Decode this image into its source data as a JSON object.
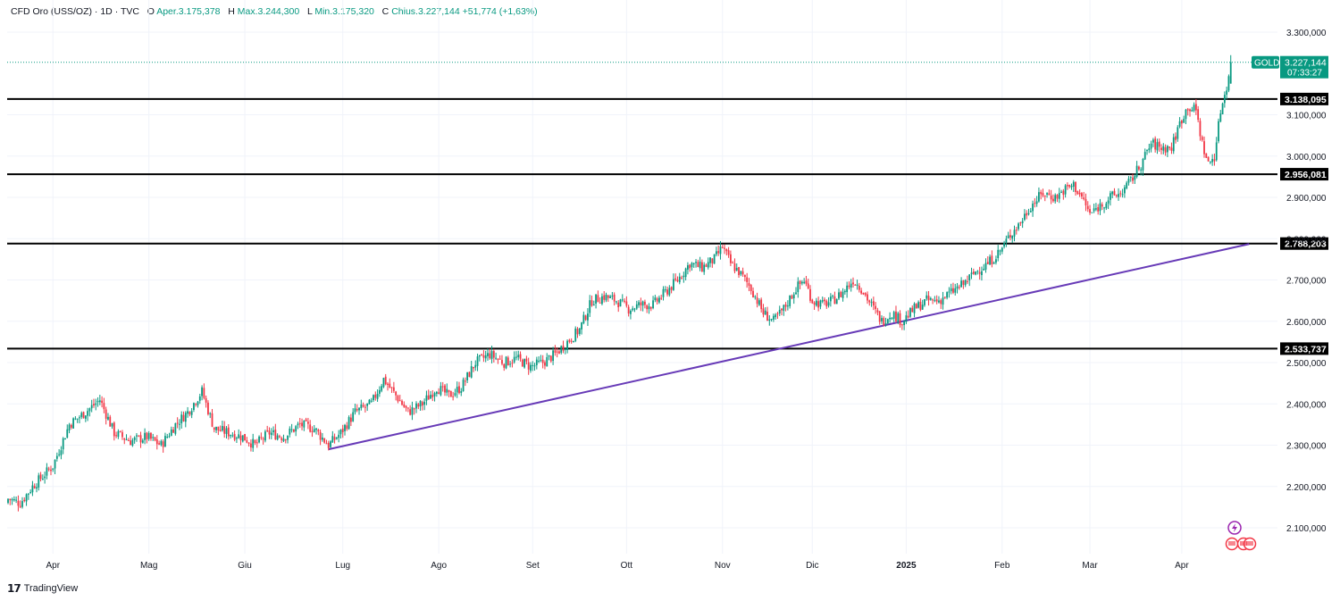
{
  "header": {
    "symbol": "CFD Oro (USS/OZ)",
    "interval": "1D",
    "source": "TVC",
    "open_label": "O",
    "open": "Aper.3.175,378",
    "high_label": "H",
    "high": "Max.3.244,300",
    "low_label": "L",
    "low": "Min.3.175,320",
    "close_label": "C",
    "close": "Chius.3.227,144",
    "change": "+51,774 (+1,63%)"
  },
  "last_price": {
    "ticker": "GOLD",
    "value": "3.227,144",
    "countdown": "07:33:27"
  },
  "footer": {
    "brand": "TradingView"
  },
  "colors": {
    "up": "#089981",
    "down": "#f23645",
    "trendline": "#673ab7",
    "level": "#000000",
    "grid": "#f0f3fa"
  },
  "chart_data": {
    "type": "candlestick",
    "y_axis": {
      "ylim": [
        2020,
        3350
      ],
      "ticks": [
        2100,
        2200,
        2300,
        2400,
        2500,
        2600,
        2700,
        2800,
        2900,
        3000,
        3100,
        3300
      ],
      "tick_labels": [
        "2.100,000",
        "2.200,000",
        "2.300,000",
        "2.400,000",
        "2.500,000",
        "2.600,000",
        "2.700,000",
        "2.800,000",
        "2.900,000",
        "3.000,000",
        "3.100,000",
        "3.300,000"
      ]
    },
    "x_axis": {
      "labels": [
        "Apr",
        "Mag",
        "Giu",
        "Lug",
        "Ago",
        "Set",
        "Ott",
        "Nov",
        "Dic",
        "2025",
        "Feb",
        "Mar",
        "Apr"
      ],
      "bold": [
        false,
        false,
        false,
        false,
        false,
        false,
        false,
        false,
        false,
        true,
        false,
        false,
        false
      ],
      "label_bar_index": [
        22,
        69,
        116,
        164,
        211,
        257,
        303,
        350,
        394,
        440,
        487,
        530,
        575
      ]
    },
    "horizontal_levels": [
      {
        "value": 3138.095,
        "label": "3.138,095"
      },
      {
        "value": 2956.081,
        "label": "2.956,081"
      },
      {
        "value": 2788.203,
        "label": "2.788,203"
      },
      {
        "value": 2533.737,
        "label": "2.533,737"
      }
    ],
    "trendline": {
      "from_bar": 157,
      "from_value": 2290,
      "to_bar": 608,
      "to_value": 2787
    },
    "anchors": [
      [
        0,
        2170
      ],
      [
        6,
        2160
      ],
      [
        12,
        2200
      ],
      [
        22,
        2250
      ],
      [
        30,
        2350
      ],
      [
        38,
        2380
      ],
      [
        45,
        2410
      ],
      [
        52,
        2330
      ],
      [
        60,
        2310
      ],
      [
        68,
        2320
      ],
      [
        75,
        2300
      ],
      [
        82,
        2350
      ],
      [
        88,
        2380
      ],
      [
        95,
        2430
      ],
      [
        101,
        2340
      ],
      [
        108,
        2330
      ],
      [
        115,
        2320
      ],
      [
        121,
        2300
      ],
      [
        128,
        2330
      ],
      [
        135,
        2320
      ],
      [
        143,
        2350
      ],
      [
        150,
        2340
      ],
      [
        157,
        2300
      ],
      [
        163,
        2330
      ],
      [
        170,
        2380
      ],
      [
        178,
        2400
      ],
      [
        184,
        2460
      ],
      [
        190,
        2420
      ],
      [
        196,
        2380
      ],
      [
        203,
        2400
      ],
      [
        210,
        2440
      ],
      [
        216,
        2420
      ],
      [
        222,
        2440
      ],
      [
        229,
        2500
      ],
      [
        236,
        2520
      ],
      [
        243,
        2500
      ],
      [
        249,
        2510
      ],
      [
        256,
        2490
      ],
      [
        262,
        2500
      ],
      [
        268,
        2520
      ],
      [
        274,
        2550
      ],
      [
        280,
        2580
      ],
      [
        286,
        2650
      ],
      [
        292,
        2660
      ],
      [
        298,
        2650
      ],
      [
        304,
        2630
      ],
      [
        310,
        2640
      ],
      [
        316,
        2640
      ],
      [
        322,
        2670
      ],
      [
        328,
        2700
      ],
      [
        334,
        2740
      ],
      [
        340,
        2730
      ],
      [
        346,
        2750
      ],
      [
        350,
        2780
      ],
      [
        354,
        2740
      ],
      [
        358,
        2720
      ],
      [
        364,
        2680
      ],
      [
        370,
        2620
      ],
      [
        375,
        2600
      ],
      [
        380,
        2630
      ],
      [
        386,
        2680
      ],
      [
        390,
        2700
      ],
      [
        394,
        2650
      ],
      [
        399,
        2640
      ],
      [
        404,
        2650
      ],
      [
        409,
        2670
      ],
      [
        414,
        2700
      ],
      [
        418,
        2680
      ],
      [
        424,
        2630
      ],
      [
        428,
        2600
      ],
      [
        433,
        2620
      ],
      [
        438,
        2600
      ],
      [
        444,
        2630
      ],
      [
        450,
        2650
      ],
      [
        456,
        2650
      ],
      [
        462,
        2670
      ],
      [
        468,
        2690
      ],
      [
        474,
        2720
      ],
      [
        480,
        2740
      ],
      [
        486,
        2770
      ],
      [
        491,
        2810
      ],
      [
        496,
        2840
      ],
      [
        501,
        2880
      ],
      [
        507,
        2910
      ],
      [
        513,
        2900
      ],
      [
        518,
        2920
      ],
      [
        522,
        2930
      ],
      [
        526,
        2900
      ],
      [
        530,
        2860
      ],
      [
        535,
        2880
      ],
      [
        540,
        2900
      ],
      [
        545,
        2910
      ],
      [
        550,
        2940
      ],
      [
        555,
        2980
      ],
      [
        560,
        3030
      ],
      [
        565,
        3020
      ],
      [
        570,
        3020
      ],
      [
        574,
        3080
      ],
      [
        578,
        3120
      ],
      [
        582,
        3110
      ],
      [
        585,
        3030
      ],
      [
        588,
        2980
      ],
      [
        591,
        3000
      ],
      [
        594,
        3110
      ],
      [
        597,
        3170
      ],
      [
        599,
        3227.144
      ]
    ],
    "last_close": 3227.144,
    "last_high": 3244.3,
    "last_low": 3175.32,
    "last_open": 3175.378
  }
}
